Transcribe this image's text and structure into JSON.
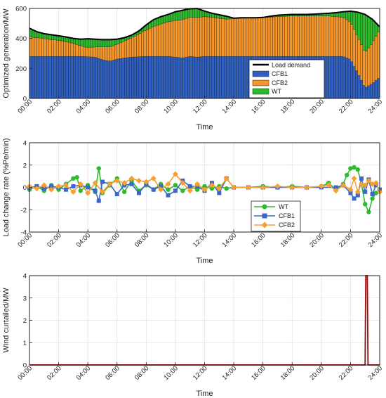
{
  "x_tick_labels": [
    "00:00",
    "02:00",
    "04:00",
    "06:00",
    "08:00",
    "10:00",
    "12:00",
    "14:00",
    "16:00",
    "18:00",
    "20:00",
    "22:00",
    "24:00"
  ],
  "chart_data": [
    {
      "type": "bar",
      "stacked": true,
      "xlabel": "Time",
      "ylabel": "Optimized generation/MW",
      "xlim": [
        0,
        24
      ],
      "ylim": [
        0,
        600
      ],
      "yticks": [
        0,
        200,
        400,
        600
      ],
      "grid": true,
      "legend": "bottom-right",
      "colors": {
        "CFB1": "#2f5fbf",
        "CFB2": "#f5962a",
        "WT": "#2dbb2d",
        "Load demand": "#000000"
      },
      "line_series": {
        "name": "Load demand",
        "x": [
          0,
          0.5,
          1,
          1.5,
          2,
          2.5,
          3,
          3.5,
          4,
          4.5,
          5,
          5.5,
          6,
          6.5,
          7,
          7.5,
          8,
          8.5,
          9,
          9.5,
          10,
          10.5,
          11,
          11.5,
          12,
          12.5,
          13,
          13.5,
          14,
          14.5,
          15,
          15.5,
          16,
          16.5,
          17,
          17.5,
          18,
          18.5,
          19,
          19.5,
          20,
          20.5,
          21,
          21.5,
          22,
          22.5,
          23,
          23.5,
          24
        ],
        "values": [
          468,
          445,
          432,
          425,
          418,
          410,
          400,
          395,
          398,
          395,
          392,
          392,
          395,
          405,
          422,
          450,
          490,
          525,
          545,
          560,
          578,
          588,
          598,
          600,
          582,
          568,
          558,
          548,
          535,
          538,
          538,
          538,
          540,
          548,
          555,
          558,
          560,
          560,
          560,
          562,
          565,
          568,
          572,
          578,
          582,
          575,
          560,
          528,
          478
        ]
      },
      "series": [
        {
          "name": "CFB1",
          "x": [
            0,
            0.5,
            1,
            1.5,
            2,
            2.5,
            3,
            3.5,
            4,
            4.5,
            5,
            5.5,
            6,
            6.5,
            7,
            7.5,
            8,
            8.5,
            9,
            9.5,
            10,
            10.5,
            11,
            11.5,
            12,
            12.5,
            13,
            13.5,
            14,
            14.5,
            15,
            15.5,
            16,
            16.5,
            17,
            17.5,
            18,
            18.5,
            19,
            19.5,
            20,
            20.5,
            21,
            21.5,
            22,
            22.5,
            23,
            23.5,
            24
          ],
          "values": [
            280,
            280,
            280,
            280,
            280,
            280,
            280,
            280,
            278,
            275,
            258,
            248,
            262,
            270,
            275,
            278,
            280,
            280,
            280,
            280,
            275,
            270,
            280,
            275,
            280,
            280,
            280,
            280,
            280,
            280,
            280,
            280,
            280,
            280,
            280,
            280,
            280,
            280,
            280,
            280,
            280,
            280,
            280,
            280,
            260,
            170,
            70,
            100,
            140
          ]
        },
        {
          "name": "CFB2",
          "x": [
            0,
            0.5,
            1,
            1.5,
            2,
            2.5,
            3,
            3.5,
            4,
            4.5,
            5,
            5.5,
            6,
            6.5,
            7,
            7.5,
            8,
            8.5,
            9,
            9.5,
            10,
            10.5,
            11,
            11.5,
            12,
            12.5,
            13,
            13.5,
            14,
            14.5,
            15,
            15.5,
            16,
            16.5,
            17,
            17.5,
            18,
            18.5,
            19,
            19.5,
            20,
            20.5,
            21,
            21.5,
            22,
            22.5,
            23,
            23.5,
            24
          ],
          "values": [
            130,
            125,
            118,
            112,
            108,
            98,
            88,
            70,
            62,
            68,
            85,
            95,
            98,
            112,
            130,
            150,
            175,
            200,
            215,
            230,
            245,
            255,
            262,
            265,
            265,
            262,
            255,
            248,
            255,
            258,
            258,
            258,
            260,
            262,
            265,
            268,
            270,
            270,
            270,
            270,
            270,
            270,
            265,
            260,
            250,
            240,
            235,
            270,
            320
          ]
        },
        {
          "name": "WT",
          "x": [
            0,
            0.5,
            1,
            1.5,
            2,
            2.5,
            3,
            3.5,
            4,
            4.5,
            5,
            5.5,
            6,
            6.5,
            7,
            7.5,
            8,
            8.5,
            9,
            9.5,
            10,
            10.5,
            11,
            11.5,
            12,
            12.5,
            13,
            13.5,
            14,
            14.5,
            15,
            15.5,
            16,
            16.5,
            17,
            17.5,
            18,
            18.5,
            19,
            19.5,
            20,
            20.5,
            21,
            21.5,
            22,
            22.5,
            23,
            23.5,
            24
          ],
          "values": [
            58,
            40,
            34,
            33,
            30,
            32,
            32,
            45,
            58,
            52,
            49,
            49,
            35,
            23,
            17,
            22,
            35,
            45,
            50,
            50,
            58,
            63,
            56,
            60,
            37,
            26,
            23,
            20,
            0,
            0,
            0,
            0,
            0,
            6,
            10,
            10,
            10,
            10,
            10,
            12,
            15,
            18,
            27,
            38,
            72,
            165,
            255,
            158,
            18
          ]
        }
      ]
    },
    {
      "type": "line",
      "xlabel": "Time",
      "ylabel": "Load change rate (%Pe/min)",
      "xlim": [
        0,
        24
      ],
      "ylim": [
        -4,
        4
      ],
      "yticks": [
        -4,
        -2,
        0,
        2,
        4
      ],
      "grid": true,
      "legend": "bottom-center",
      "series": [
        {
          "name": "WT",
          "color": "#2dbb2d",
          "marker": "circle",
          "x": [
            0,
            0.5,
            1,
            1.5,
            2,
            2.5,
            3,
            3.25,
            3.5,
            4,
            4.5,
            4.75,
            5,
            5.5,
            6,
            6.5,
            7,
            7.5,
            8,
            8.5,
            9,
            9.5,
            10,
            10.5,
            11,
            11.5,
            12,
            12.5,
            13,
            13.5,
            14,
            15,
            16,
            17,
            18,
            19,
            20,
            20.5,
            21,
            21.5,
            21.75,
            22,
            22.25,
            22.5,
            22.75,
            23,
            23.25,
            23.5,
            23.75,
            24
          ],
          "values": [
            -0.2,
            0.1,
            -0.3,
            0.2,
            -0.2,
            0.3,
            0.8,
            0.9,
            -0.3,
            0.2,
            -0.4,
            1.7,
            -0.5,
            0.2,
            0.8,
            -0.4,
            0.6,
            -0.3,
            0.2,
            -0.2,
            0.3,
            -0.2,
            0.2,
            -0.3,
            0.1,
            -0.2,
            0.1,
            -0.1,
            0.1,
            -0.1,
            0,
            0,
            0.1,
            0,
            0.1,
            0,
            0.1,
            0.4,
            -0.2,
            0.3,
            1.1,
            1.7,
            1.8,
            1.6,
            0.3,
            -1.5,
            -2.2,
            -1.0,
            -0.5,
            -0.2
          ]
        },
        {
          "name": "CFB1",
          "color": "#3a67c8",
          "marker": "square",
          "x": [
            0,
            0.5,
            1,
            1.5,
            2,
            2.5,
            3,
            3.5,
            4,
            4.5,
            4.75,
            5,
            5.5,
            6,
            6.5,
            7,
            7.5,
            8,
            8.5,
            9,
            9.5,
            10,
            10.5,
            11,
            11.5,
            12,
            12.5,
            13,
            13.5,
            14,
            15,
            16,
            17,
            18,
            19,
            20,
            21,
            21.5,
            22,
            22.25,
            22.5,
            22.75,
            23,
            23.25,
            23.5,
            23.75,
            24
          ],
          "values": [
            0,
            0.1,
            -0.1,
            0.1,
            0,
            -0.2,
            0.1,
            0.2,
            0,
            -0.3,
            -1.2,
            0.5,
            0.3,
            -0.6,
            0.2,
            0.3,
            -0.5,
            0.3,
            -0.2,
            0.1,
            -0.7,
            -0.3,
            0.6,
            0.1,
            0.1,
            -0.3,
            0.4,
            -0.5,
            0.8,
            0,
            0,
            0,
            0,
            0,
            0,
            0,
            0,
            0.2,
            -0.5,
            -1.0,
            -0.7,
            0.8,
            -0.4,
            0.7,
            -0.6,
            0.2,
            -0.2
          ]
        },
        {
          "name": "CFB2",
          "color": "#f5a030",
          "marker": "diamond",
          "x": [
            0,
            0.5,
            1,
            1.5,
            2,
            2.5,
            3,
            3.5,
            4,
            4.5,
            5,
            5.5,
            6,
            6.5,
            7,
            7.5,
            8,
            8.5,
            9,
            9.5,
            10,
            10.5,
            11,
            11.5,
            12,
            12.5,
            13,
            13.5,
            14,
            15,
            16,
            17,
            18,
            19,
            20,
            20.5,
            21,
            21.5,
            22,
            22.25,
            22.5,
            22.75,
            23,
            23.25,
            23.5,
            23.75,
            24
          ],
          "values": [
            0.1,
            -0.1,
            0.2,
            -0.2,
            0.1,
            0.2,
            -0.4,
            0.3,
            -0.5,
            0.4,
            -0.4,
            0.3,
            0.6,
            0.4,
            0.8,
            0.6,
            0.5,
            0.8,
            -0.2,
            0.3,
            1.2,
            0.4,
            -0.3,
            0.3,
            -0.2,
            0.2,
            -0.1,
            0.8,
            0,
            0,
            0,
            0.1,
            0,
            0,
            0.1,
            0.2,
            -0.3,
            0.2,
            -0.2,
            0.8,
            -0.4,
            0.3,
            0.2,
            0.6,
            0.3,
            0.4,
            -0.4
          ]
        }
      ]
    },
    {
      "type": "line",
      "xlabel": "Time",
      "ylabel": "Wind curtailed/MW",
      "xlim": [
        0,
        24
      ],
      "ylim": [
        0,
        4
      ],
      "yticks": [
        0,
        1,
        2,
        3,
        4
      ],
      "grid": true,
      "series": [
        {
          "name": "Wind curtailed",
          "color": "#d81b1b",
          "x": [
            0,
            23.0,
            23.05,
            23.15,
            23.2,
            24
          ],
          "values": [
            0,
            0,
            4,
            4,
            0,
            0
          ]
        }
      ]
    }
  ]
}
